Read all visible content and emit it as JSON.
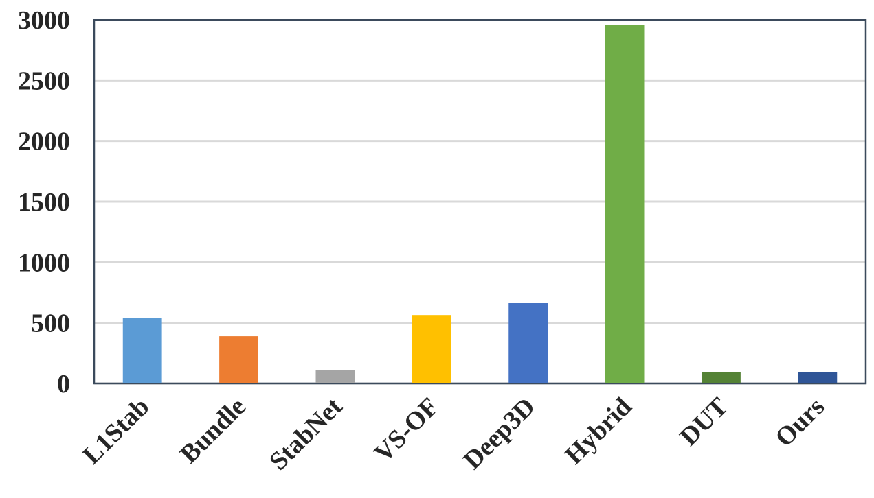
{
  "chart_data": {
    "type": "bar",
    "categories": [
      "L1Stab",
      "Bundle",
      "StabNet",
      "VS-OF",
      "Deep3D",
      "Hybrid",
      "DUT",
      "Ours"
    ],
    "values": [
      540,
      390,
      110,
      565,
      665,
      2960,
      95,
      95
    ],
    "colors": [
      "#5b9bd5",
      "#ed7d31",
      "#a5a5a5",
      "#ffc000",
      "#4472c4",
      "#70ad47",
      "#548235",
      "#2f5597"
    ],
    "yticks": [
      "0",
      "500",
      "1000",
      "1500",
      "2000",
      "2500",
      "3000"
    ],
    "ylim": [
      0,
      3000
    ],
    "grid": true,
    "title": "",
    "xlabel": "",
    "ylabel": ""
  }
}
